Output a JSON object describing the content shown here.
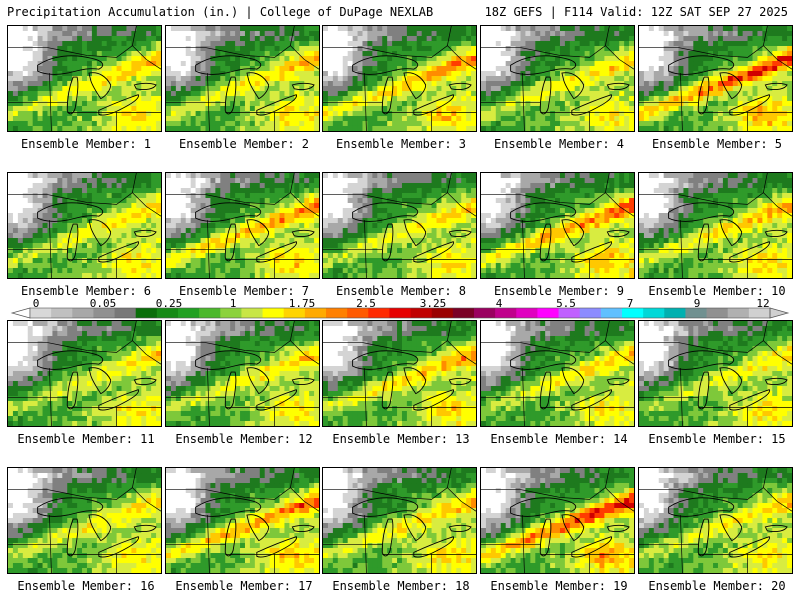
{
  "header": {
    "left": "Precipitation Accumulation (in.) | College of DuPage NEXLAB",
    "right": "18Z GEFS | F114 Valid: 12Z SAT SEP 27 2025"
  },
  "panels": [
    {
      "label": "Ensemble Member: 1",
      "intensity": 0.45
    },
    {
      "label": "Ensemble Member: 2",
      "intensity": 0.45
    },
    {
      "label": "Ensemble Member: 3",
      "intensity": 0.55
    },
    {
      "label": "Ensemble Member: 4",
      "intensity": 0.4
    },
    {
      "label": "Ensemble Member: 5",
      "intensity": 0.7
    },
    {
      "label": "Ensemble Member: 6",
      "intensity": 0.4
    },
    {
      "label": "Ensemble Member: 7",
      "intensity": 0.55
    },
    {
      "label": "Ensemble Member: 8",
      "intensity": 0.4
    },
    {
      "label": "Ensemble Member: 9",
      "intensity": 0.6
    },
    {
      "label": "Ensemble Member: 10",
      "intensity": 0.45
    },
    {
      "label": "Ensemble Member: 11",
      "intensity": 0.35
    },
    {
      "label": "Ensemble Member: 12",
      "intensity": 0.4
    },
    {
      "label": "Ensemble Member: 13",
      "intensity": 0.5
    },
    {
      "label": "Ensemble Member: 14",
      "intensity": 0.4
    },
    {
      "label": "Ensemble Member: 15",
      "intensity": 0.35
    },
    {
      "label": "Ensemble Member: 16",
      "intensity": 0.4
    },
    {
      "label": "Ensemble Member: 17",
      "intensity": 0.6
    },
    {
      "label": "Ensemble Member: 18",
      "intensity": 0.45
    },
    {
      "label": "Ensemble Member: 19",
      "intensity": 0.75
    },
    {
      "label": "Ensemble Member: 20",
      "intensity": 0.4
    }
  ],
  "colorbar": {
    "tick_labels": [
      "0",
      "0.05",
      "0.25",
      "1",
      "1.75",
      "2.5",
      "3.25",
      "4",
      "5.5",
      "7",
      "9",
      "12"
    ],
    "colors": [
      "#d8d8d8",
      "#c0c0c0",
      "#a8a8a8",
      "#909090",
      "#787878",
      "#0a6e0a",
      "#168a16",
      "#22a022",
      "#4cb82c",
      "#8cd23c",
      "#c8e646",
      "#ffff00",
      "#ffd400",
      "#ffaa00",
      "#ff8000",
      "#ff5a00",
      "#ff2a00",
      "#e60000",
      "#c00000",
      "#9a0000",
      "#7a0026",
      "#9a0060",
      "#c0008c",
      "#e000c0",
      "#ff00ff",
      "#c060ff",
      "#8c8cff",
      "#60c0ff",
      "#00ffff",
      "#00d8d8",
      "#00b0b0",
      "#709090",
      "#909090",
      "#b0b0b0",
      "#d0d0d0"
    ]
  }
}
